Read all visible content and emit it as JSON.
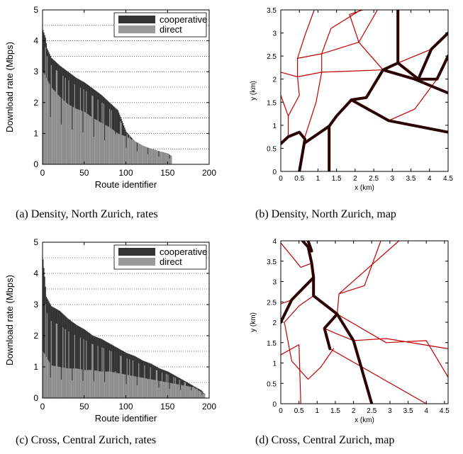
{
  "chart_data": [
    {
      "id": "a",
      "type": "area",
      "caption": "(a) Density, North Zurich, rates",
      "xlabel": "Route identifier",
      "ylabel": "Download rate (Mbps)",
      "xlim": [
        0,
        200
      ],
      "ylim": [
        0,
        5
      ],
      "xticks": [
        "0",
        "50",
        "100",
        "150",
        "200"
      ],
      "yticks": [
        "0",
        "1",
        "2",
        "3",
        "4",
        "5"
      ],
      "legend": {
        "position": "top-right",
        "entries": [
          "cooperative",
          "direct"
        ]
      },
      "colors": {
        "cooperative": "#333333",
        "direct": "#999999"
      },
      "grid": "horizontal dotted",
      "route_count": 155,
      "series": [
        {
          "name": "cooperative",
          "x": [
            0,
            3,
            5,
            10,
            20,
            30,
            40,
            50,
            60,
            70,
            80,
            90,
            100,
            110,
            120,
            130,
            140,
            150,
            155
          ],
          "values": [
            4.35,
            4.1,
            3.75,
            3.45,
            3.2,
            3.0,
            2.8,
            2.65,
            2.45,
            2.25,
            2.0,
            1.75,
            1.05,
            0.75,
            0.6,
            0.5,
            0.42,
            0.35,
            0.25
          ]
        },
        {
          "name": "direct",
          "x": [
            0,
            10,
            20,
            30,
            40,
            50,
            60,
            70,
            80,
            90,
            100,
            110,
            120,
            130,
            140,
            150,
            155
          ],
          "values": [
            3.0,
            2.5,
            2.2,
            1.95,
            1.8,
            1.7,
            1.5,
            1.35,
            1.2,
            1.0,
            0.9,
            0.75,
            0.6,
            0.5,
            0.42,
            0.35,
            0.25
          ]
        }
      ]
    },
    {
      "id": "b",
      "type": "line",
      "caption": "(b) Density, North Zurich, map",
      "xlabel": "x (km)",
      "ylabel": "y (km)",
      "xlim": [
        0,
        4.5
      ],
      "ylim": [
        0,
        3.5
      ],
      "xticks": [
        "0",
        "0.5",
        "1",
        "1.5",
        "2",
        "2.5",
        "3",
        "3.5",
        "4",
        "4.5"
      ],
      "yticks": [
        "0",
        "0.5",
        "1",
        "1.5",
        "2",
        "2.5",
        "3",
        "3.5"
      ],
      "colors": {
        "thin": "#c00000",
        "thick": "#2a0000"
      },
      "segments": [
        {
          "w": "thick",
          "pts": [
            [
              0,
              0.6
            ],
            [
              0.2,
              0.75
            ],
            [
              0.5,
              0.85
            ],
            [
              0.65,
              0.7
            ],
            [
              0.5,
              0
            ]
          ]
        },
        {
          "w": "thick",
          "pts": [
            [
              0.65,
              0.62
            ],
            [
              1.3,
              0.98
            ],
            [
              1.5,
              1.2
            ],
            [
              1.9,
              1.55
            ],
            [
              2.3,
              1.6
            ],
            [
              2.75,
              2.2
            ],
            [
              3.6,
              2.0
            ],
            [
              4.2,
              2.0
            ],
            [
              4.5,
              2.5
            ]
          ]
        },
        {
          "w": "thick",
          "pts": [
            [
              2.75,
              2.2
            ],
            [
              3.15,
              2.35
            ],
            [
              3.15,
              3.5
            ]
          ]
        },
        {
          "w": "thick",
          "pts": [
            [
              3.15,
              2.35
            ],
            [
              3.7,
              2.0
            ],
            [
              4.05,
              2.65
            ],
            [
              4.5,
              3.0
            ]
          ]
        },
        {
          "w": "thick",
          "pts": [
            [
              1.3,
              0.98
            ],
            [
              1.3,
              0
            ]
          ]
        },
        {
          "w": "thick",
          "pts": [
            [
              3.6,
              2.0
            ],
            [
              4.5,
              1.7
            ]
          ]
        },
        {
          "w": "thick",
          "pts": [
            [
              1.9,
              1.55
            ],
            [
              2.9,
              1.1
            ],
            [
              4.5,
              0.85
            ]
          ]
        },
        {
          "w": "thin",
          "pts": [
            [
              0,
              2.15
            ],
            [
              0.45,
              2.05
            ],
            [
              1.1,
              2.15
            ],
            [
              2.75,
              2.2
            ]
          ]
        },
        {
          "w": "thin",
          "pts": [
            [
              0.45,
              2.05
            ],
            [
              0.45,
              2.45
            ],
            [
              1.1,
              2.55
            ],
            [
              2.1,
              2.8
            ],
            [
              2.6,
              3.5
            ]
          ]
        },
        {
          "w": "thin",
          "pts": [
            [
              0.45,
              2.45
            ],
            [
              0.65,
              2.95
            ],
            [
              0.9,
              3.5
            ]
          ]
        },
        {
          "w": "thin",
          "pts": [
            [
              1.1,
              2.55
            ],
            [
              1.1,
              2.15
            ],
            [
              0.95,
              1.5
            ],
            [
              0.65,
              0.75
            ]
          ]
        },
        {
          "w": "thin",
          "pts": [
            [
              1.1,
              2.55
            ],
            [
              1.35,
              3.1
            ],
            [
              2.15,
              3.5
            ]
          ]
        },
        {
          "w": "thin",
          "pts": [
            [
              2.1,
              2.8
            ],
            [
              1.85,
              3.4
            ],
            [
              2.2,
              3.5
            ]
          ]
        },
        {
          "w": "thin",
          "pts": [
            [
              2.1,
              2.8
            ],
            [
              2.75,
              2.2
            ]
          ]
        },
        {
          "w": "thin",
          "pts": [
            [
              0,
              1.65
            ],
            [
              0.2,
              1.2
            ],
            [
              0.2,
              0.75
            ]
          ]
        },
        {
          "w": "thin",
          "pts": [
            [
              0.2,
              1.2
            ],
            [
              0.5,
              1.65
            ],
            [
              0.45,
              2.05
            ]
          ]
        },
        {
          "w": "thin",
          "pts": [
            [
              2.9,
              1.1
            ],
            [
              3.6,
              1.35
            ],
            [
              4.2,
              2.0
            ]
          ]
        },
        {
          "w": "thin",
          "pts": [
            [
              3.15,
              2.35
            ],
            [
              4.05,
              2.65
            ]
          ]
        },
        {
          "w": "thin",
          "pts": [
            [
              2.75,
              2.2
            ],
            [
              3.1,
              2.1
            ]
          ]
        }
      ]
    },
    {
      "id": "c",
      "type": "area",
      "caption": "(c) Cross, Central Zurich, rates",
      "xlabel": "Route identifier",
      "ylabel": "Download rate (Mbps)",
      "xlim": [
        0,
        200
      ],
      "ylim": [
        0,
        5
      ],
      "xticks": [
        "0",
        "50",
        "100",
        "150",
        "200"
      ],
      "yticks": [
        "0",
        "1",
        "2",
        "3",
        "4",
        "5"
      ],
      "legend": {
        "position": "top-right",
        "entries": [
          "cooperative",
          "direct"
        ]
      },
      "colors": {
        "cooperative": "#333333",
        "direct": "#999999"
      },
      "grid": "horizontal dotted",
      "route_count": 195,
      "series": [
        {
          "name": "cooperative",
          "x": [
            0,
            2,
            4,
            10,
            20,
            30,
            40,
            50,
            60,
            70,
            80,
            90,
            100,
            110,
            120,
            130,
            140,
            150,
            160,
            170,
            180,
            190,
            195
          ],
          "values": [
            4.45,
            3.9,
            3.25,
            2.95,
            2.8,
            2.55,
            2.35,
            2.2,
            2.0,
            1.9,
            1.75,
            1.6,
            1.45,
            1.35,
            1.2,
            1.1,
            0.95,
            0.85,
            0.7,
            0.55,
            0.4,
            0.25,
            0.1
          ]
        },
        {
          "name": "direct",
          "x": [
            0,
            10,
            20,
            30,
            40,
            50,
            60,
            70,
            80,
            90,
            100,
            110,
            120,
            130,
            140,
            150,
            160,
            170,
            180,
            190,
            195
          ],
          "values": [
            1.5,
            1.05,
            1.0,
            0.95,
            0.95,
            0.9,
            0.9,
            0.85,
            0.85,
            0.8,
            0.75,
            0.7,
            0.65,
            0.6,
            0.55,
            0.5,
            0.45,
            0.4,
            0.35,
            0.2,
            0.1
          ]
        }
      ]
    },
    {
      "id": "d",
      "type": "line",
      "caption": "(d) Cross, Central Zurich, map",
      "xlabel": "x (km)",
      "ylabel": "y (km)",
      "xlim": [
        0,
        4.6
      ],
      "ylim": [
        0,
        4
      ],
      "xticks": [
        "0",
        "0.5",
        "1",
        "1.5",
        "2",
        "2.5",
        "3",
        "3.5",
        "4",
        "4.5"
      ],
      "yticks": [
        "0",
        "0.5",
        "1",
        "1.5",
        "2",
        "2.5",
        "3",
        "3.5",
        "4"
      ],
      "colors": {
        "thin": "#c00000",
        "thick": "#2a0000"
      },
      "segments": [
        {
          "w": "thick",
          "pts": [
            [
              0.6,
              4.0
            ],
            [
              0.75,
              3.85
            ],
            [
              0.85,
              3.45
            ],
            [
              0.9,
              3.1
            ],
            [
              0.9,
              2.65
            ],
            [
              1.55,
              2.2
            ],
            [
              2.0,
              1.55
            ],
            [
              2.5,
              0
            ]
          ]
        },
        {
          "w": "thick",
          "pts": [
            [
              0.75,
              4.0
            ],
            [
              0.85,
              3.75
            ]
          ]
        },
        {
          "w": "thick",
          "pts": [
            [
              0.9,
              3.1
            ],
            [
              0.3,
              2.55
            ],
            [
              0,
              2.0
            ]
          ]
        },
        {
          "w": "thick",
          "pts": [
            [
              1.55,
              2.2
            ],
            [
              1.2,
              1.85
            ],
            [
              1.35,
              1.35
            ]
          ]
        },
        {
          "w": "thin",
          "pts": [
            [
              0,
              3.95
            ],
            [
              0.55,
              3.35
            ],
            [
              0.85,
              3.45
            ]
          ]
        },
        {
          "w": "thin",
          "pts": [
            [
              0,
              2.45
            ],
            [
              0.3,
              2.55
            ]
          ]
        },
        {
          "w": "thin",
          "pts": [
            [
              0.9,
              2.65
            ],
            [
              0.5,
              2.4
            ],
            [
              0.1,
              2.0
            ],
            [
              0.3,
              1.05
            ],
            [
              0.75,
              0.6
            ],
            [
              1.1,
              0.9
            ],
            [
              1.45,
              1.35
            ]
          ]
        },
        {
          "w": "thin",
          "pts": [
            [
              0,
              1.2
            ],
            [
              0.5,
              1.45
            ],
            [
              0.55,
              0
            ]
          ]
        },
        {
          "w": "thin",
          "pts": [
            [
              1.35,
              1.35
            ],
            [
              4.0,
              0
            ]
          ]
        },
        {
          "w": "thin",
          "pts": [
            [
              1.55,
              2.2
            ],
            [
              1.6,
              2.7
            ],
            [
              2.3,
              2.9
            ],
            [
              2.75,
              4.0
            ]
          ]
        },
        {
          "w": "thin",
          "pts": [
            [
              1.6,
              2.7
            ],
            [
              3.25,
              4.0
            ]
          ]
        },
        {
          "w": "thin",
          "pts": [
            [
              1.55,
              2.2
            ],
            [
              2.9,
              1.5
            ],
            [
              4.0,
              1.55
            ],
            [
              4.6,
              0.65
            ]
          ]
        },
        {
          "w": "thin",
          "pts": [
            [
              2.0,
              1.55
            ],
            [
              2.9,
              1.6
            ],
            [
              4.6,
              1.35
            ]
          ]
        },
        {
          "w": "thin",
          "pts": [
            [
              1.2,
              1.85
            ],
            [
              1.45,
              1.75
            ],
            [
              2.0,
              1.55
            ]
          ]
        }
      ]
    }
  ]
}
